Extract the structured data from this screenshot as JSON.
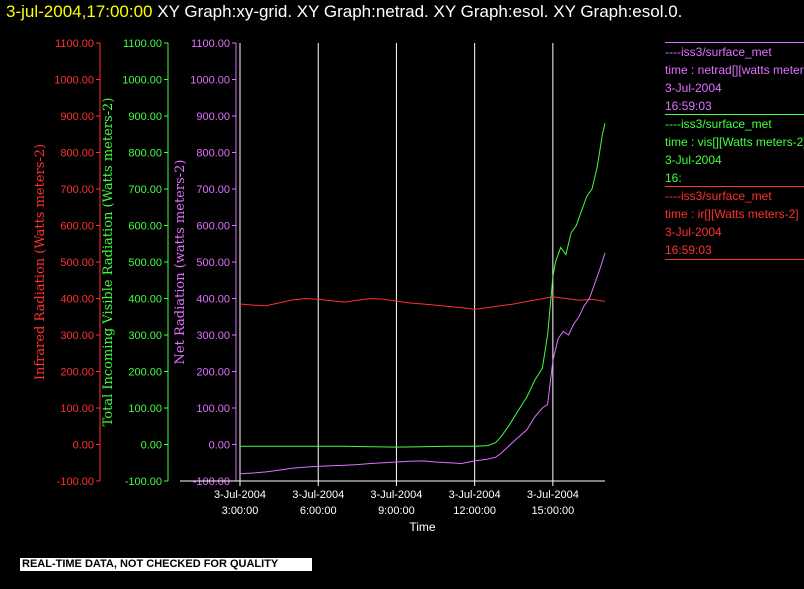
{
  "header": {
    "timestamp": "3-jul-2004,17:00:00",
    "titles": [
      "XY Graph:xy-grid.",
      "XY Graph:netrad.",
      "XY Graph:esol.",
      "XY Graph:esol.0."
    ]
  },
  "colors": {
    "ir": "#ff3030",
    "vis": "#40ff40",
    "net": "#e070ff",
    "axis": "#ffffff",
    "timestamp": "#ffff00"
  },
  "legend": [
    {
      "color": "#e070ff",
      "lines": [
        "----iss3/surface_met",
        "time : netrad[][watts meters-2]",
        "3-Jul-2004",
        "16:59:03"
      ]
    },
    {
      "color": "#40ff40",
      "lines": [
        "----iss3/surface_met",
        "time : vis[][Watts meters-2]",
        "3-Jul-2004",
        "16:"
      ]
    },
    {
      "color": "#ff3030",
      "lines": [
        "----iss3/surface_met",
        "time : ir[][Watts meters-2]",
        "3-Jul-2004",
        "16:59:03"
      ]
    }
  ],
  "note": "REAL-TIME DATA, NOT CHECKED FOR QUALITY",
  "chart_data": {
    "type": "line",
    "xlabel": "Time",
    "x_ticks": [
      {
        "hour": 3,
        "date": "3-Jul-2004",
        "time": "3:00:00"
      },
      {
        "hour": 6,
        "date": "3-Jul-2004",
        "time": "6:00:00"
      },
      {
        "hour": 9,
        "date": "3-Jul-2004",
        "time": "9:00:00"
      },
      {
        "hour": 12,
        "date": "3-Jul-2004",
        "time": "12:00:00"
      },
      {
        "hour": 15,
        "date": "3-Jul-2004",
        "time": "15:00:00"
      }
    ],
    "xlim": [
      3,
      17
    ],
    "grid": "vertical",
    "axes": [
      {
        "id": "ir",
        "label": "Infrared Radiation (Watts meters-2)",
        "color": "#ff3030",
        "ylim": [
          -100,
          1100
        ],
        "ticks": [
          "1100.00",
          "1000.00",
          "900.00",
          "800.00",
          "700.00",
          "600.00",
          "500.00",
          "400.00",
          "300.00",
          "200.00",
          "100.00",
          "0.00",
          "-100.00"
        ]
      },
      {
        "id": "vis",
        "label": "Total Incoming Visible Radiation (Watts meters-2)",
        "color": "#40ff40",
        "ylim": [
          -100,
          1100
        ],
        "ticks": [
          "1100.00",
          "1000.00",
          "900.00",
          "800.00",
          "700.00",
          "600.00",
          "500.00",
          "400.00",
          "300.00",
          "200.00",
          "100.00",
          "0.00",
          "-100.00"
        ]
      },
      {
        "id": "net",
        "label": "Net Radiation (watts meters-2)",
        "color": "#e070ff",
        "ylim": [
          -100,
          1100
        ],
        "ticks": [
          "1100.00",
          "1000.00",
          "900.00",
          "800.00",
          "700.00",
          "600.00",
          "500.00",
          "400.00",
          "300.00",
          "200.00",
          "100.00",
          "0.00",
          "-100.00"
        ]
      }
    ],
    "series": [
      {
        "axis": "ir",
        "color": "#ff3030",
        "x": [
          3.0,
          3.5,
          4.0,
          4.5,
          5.0,
          5.5,
          6.0,
          6.5,
          7.0,
          7.5,
          8.0,
          8.5,
          9.0,
          9.5,
          10.0,
          10.5,
          11.0,
          11.5,
          12.0,
          12.5,
          13.0,
          13.5,
          14.0,
          14.5,
          15.0,
          15.5,
          16.0,
          16.5,
          17.0
        ],
        "values": [
          385,
          382,
          380,
          388,
          396,
          400,
          398,
          394,
          390,
          395,
          400,
          398,
          393,
          388,
          385,
          382,
          378,
          375,
          370,
          375,
          380,
          385,
          392,
          398,
          405,
          400,
          395,
          398,
          392
        ]
      },
      {
        "axis": "vis",
        "color": "#40ff40",
        "x": [
          3.0,
          4.0,
          5.0,
          6.0,
          7.0,
          8.0,
          9.0,
          10.0,
          11.0,
          12.0,
          12.5,
          12.8,
          13.0,
          13.3,
          13.6,
          14.0,
          14.3,
          14.6,
          14.8,
          15.0,
          15.1,
          15.3,
          15.5,
          15.7,
          15.9,
          16.1,
          16.3,
          16.5,
          16.7,
          16.9,
          17.0
        ],
        "values": [
          -5,
          -5,
          -5,
          -5,
          -5,
          -6,
          -7,
          -6,
          -5,
          -5,
          -3,
          5,
          20,
          50,
          85,
          130,
          175,
          210,
          300,
          460,
          500,
          540,
          520,
          580,
          600,
          640,
          680,
          700,
          760,
          850,
          880
        ]
      },
      {
        "axis": "net",
        "color": "#e070ff",
        "x": [
          3.0,
          3.5,
          4.0,
          4.5,
          5.0,
          5.5,
          6.0,
          6.5,
          7.0,
          7.5,
          8.0,
          8.5,
          9.0,
          9.5,
          10.0,
          10.5,
          11.0,
          11.5,
          12.0,
          12.5,
          12.8,
          13.0,
          13.3,
          13.6,
          14.0,
          14.3,
          14.6,
          14.8,
          15.0,
          15.2,
          15.4,
          15.6,
          15.8,
          16.0,
          16.2,
          16.4,
          16.6,
          16.8,
          17.0
        ],
        "values": [
          -80,
          -78,
          -75,
          -70,
          -65,
          -62,
          -60,
          -58,
          -57,
          -55,
          -52,
          -50,
          -48,
          -46,
          -45,
          -48,
          -50,
          -52,
          -45,
          -40,
          -35,
          -25,
          -5,
          15,
          40,
          75,
          100,
          110,
          230,
          290,
          310,
          300,
          330,
          350,
          380,
          400,
          440,
          480,
          525
        ]
      }
    ]
  }
}
